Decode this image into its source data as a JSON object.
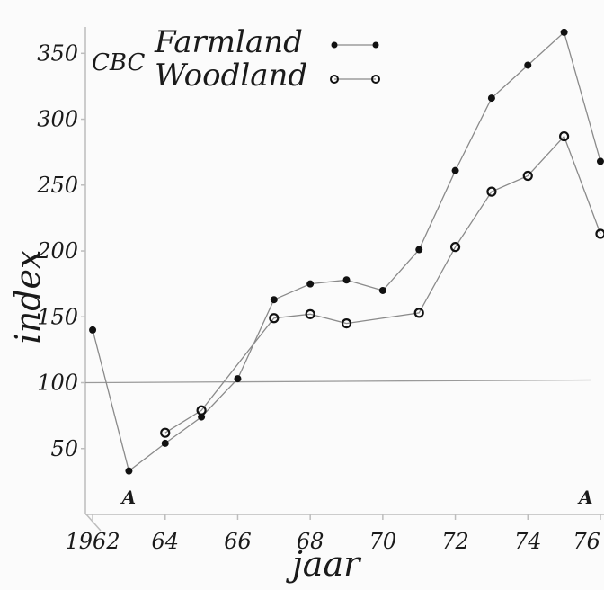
{
  "chart_data": {
    "type": "line",
    "title": "",
    "xlabel": "jaar",
    "ylabel": "index",
    "x_tick_labels": [
      "1962",
      "64",
      "66",
      "68",
      "70",
      "72",
      "74",
      "76"
    ],
    "x_tick_values": [
      1962,
      1964,
      1966,
      1968,
      1970,
      1972,
      1974,
      1976
    ],
    "y_tick_labels": [
      "50",
      "100",
      "150",
      "200",
      "250",
      "300",
      "350"
    ],
    "y_tick_values": [
      50,
      100,
      150,
      200,
      250,
      300,
      350
    ],
    "xlim": [
      1961.8,
      1976.1
    ],
    "ylim": [
      0,
      370
    ],
    "grid": false,
    "legend": {
      "placement": "top-left",
      "group_label": "CBC",
      "entries": [
        "Farmland",
        "Woodland"
      ]
    },
    "reference_line": {
      "y": 100
    },
    "series": [
      {
        "name": "Farmland",
        "marker": "filled",
        "x": [
          1962,
          1963,
          1964,
          1965,
          1966,
          1967,
          1968,
          1969,
          1970,
          1971,
          1972,
          1973,
          1974,
          1975,
          1976
        ],
        "y": [
          140,
          33,
          54,
          74,
          103,
          163,
          175,
          178,
          170,
          201,
          261,
          316,
          341,
          366,
          268
        ]
      },
      {
        "name": "Woodland",
        "marker": "open",
        "x": [
          1964,
          1965,
          1967,
          1968,
          1969,
          1971,
          1972,
          1973,
          1974,
          1975,
          1976
        ],
        "y": [
          62,
          79,
          149,
          152,
          145,
          153,
          203,
          245,
          257,
          287,
          213
        ]
      }
    ],
    "annotations": [
      {
        "text": "A",
        "x": 1963.0
      },
      {
        "text": "A",
        "x": 1975.6
      }
    ]
  }
}
